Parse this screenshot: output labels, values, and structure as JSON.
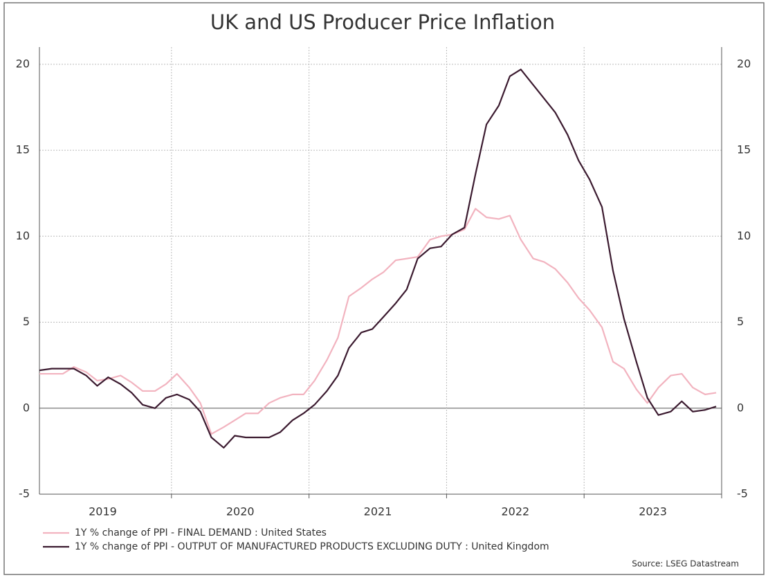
{
  "chart_data": {
    "type": "line",
    "title": "UK and US Producer Price Inflation",
    "source": "Source: LSEG Datastream",
    "x": [
      2019.04,
      2019.13,
      2019.21,
      2019.29,
      2019.38,
      2019.46,
      2019.54,
      2019.63,
      2019.71,
      2019.79,
      2019.88,
      2019.96,
      2020.04,
      2020.13,
      2020.21,
      2020.29,
      2020.38,
      2020.46,
      2020.54,
      2020.63,
      2020.71,
      2020.79,
      2020.88,
      2020.96,
      2021.04,
      2021.13,
      2021.21,
      2021.29,
      2021.38,
      2021.46,
      2021.54,
      2021.63,
      2021.71,
      2021.79,
      2021.88,
      2021.96,
      2022.04,
      2022.13,
      2022.21,
      2022.29,
      2022.38,
      2022.46,
      2022.54,
      2022.63,
      2022.71,
      2022.79,
      2022.88,
      2022.96,
      2023.04,
      2023.13,
      2023.21,
      2023.29,
      2023.38,
      2023.46,
      2023.54,
      2023.63,
      2023.71,
      2023.79,
      2023.88,
      2023.96
    ],
    "series": [
      {
        "name": "1Y % change of PPI - FINAL DEMAND : United States",
        "color": "#f2b3bf",
        "values": [
          2.0,
          2.0,
          2.0,
          2.4,
          2.1,
          1.6,
          1.7,
          1.9,
          1.5,
          1.0,
          1.0,
          1.4,
          2.0,
          1.2,
          0.3,
          -1.5,
          -1.1,
          -0.7,
          -0.3,
          -0.3,
          0.3,
          0.6,
          0.8,
          0.8,
          1.6,
          2.8,
          4.1,
          6.5,
          7.0,
          7.5,
          7.9,
          8.6,
          8.7,
          8.8,
          9.8,
          10.0,
          10.1,
          10.4,
          11.6,
          11.1,
          11.0,
          11.2,
          9.8,
          8.7,
          8.5,
          8.1,
          7.3,
          6.4,
          5.7,
          4.7,
          2.7,
          2.3,
          1.1,
          0.3,
          1.2,
          1.9,
          2.0,
          1.2,
          0.8,
          0.9
        ]
      },
      {
        "name": "1Y % change of PPI - OUTPUT OF MANUFACTURED PRODUCTS EXCLUDING DUTY : United Kingdom",
        "color": "#3b1a2f",
        "values": [
          2.2,
          2.3,
          2.3,
          2.3,
          1.9,
          1.3,
          1.8,
          1.4,
          0.9,
          0.2,
          0.0,
          0.6,
          0.8,
          0.5,
          -0.2,
          -1.7,
          -2.3,
          -1.6,
          -1.7,
          -1.7,
          -1.7,
          -1.4,
          -0.7,
          -0.3,
          0.2,
          1.0,
          1.9,
          3.5,
          4.4,
          4.6,
          5.3,
          6.1,
          6.9,
          8.7,
          9.3,
          9.4,
          10.1,
          10.5,
          13.6,
          16.5,
          17.6,
          19.3,
          19.7,
          18.8,
          18.0,
          17.2,
          15.9,
          14.4,
          13.3,
          11.7,
          8.0,
          5.2,
          2.7,
          0.6,
          -0.4,
          -0.2,
          0.4,
          -0.2,
          -0.1,
          0.1
        ]
      }
    ],
    "xlim": [
      2019.04,
      2024.0
    ],
    "xticks": [
      {
        "value": 2019.5,
        "label": "2019"
      },
      {
        "value": 2020.5,
        "label": "2020"
      },
      {
        "value": 2021.5,
        "label": "2021"
      },
      {
        "value": 2022.5,
        "label": "2022"
      },
      {
        "value": 2023.5,
        "label": "2023"
      }
    ],
    "xgrid": [
      2020,
      2021,
      2022,
      2023,
      2024
    ],
    "ylim": [
      -5,
      21
    ],
    "yticks": [
      -5,
      0,
      5,
      10,
      15,
      20
    ],
    "grid": true
  }
}
